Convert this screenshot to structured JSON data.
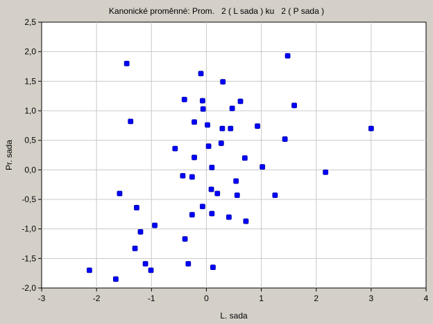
{
  "chart_data": {
    "type": "scatter",
    "title": "Kanonické proměnné: Prom.   2 ( L sada ) ku   2 ( P sada )",
    "xlabel": "L. sada",
    "ylabel": "Pr. sada",
    "xlim": [
      -3,
      4
    ],
    "ylim": [
      -2.0,
      2.5
    ],
    "xticks": [
      -3,
      -2,
      -1,
      0,
      1,
      2,
      3,
      4
    ],
    "xtick_labels": [
      "-3",
      "-2",
      "-1",
      "0",
      "1",
      "2",
      "3",
      "4"
    ],
    "yticks": [
      -2.0,
      -1.5,
      -1.0,
      -0.5,
      0.0,
      0.5,
      1.0,
      1.5,
      2.0,
      2.5
    ],
    "ytick_labels": [
      "-2,0",
      "-1,5",
      "-1,0",
      "-0,5",
      "0,0",
      "0,5",
      "1,0",
      "1,5",
      "2,0",
      "2,5"
    ],
    "grid": true,
    "marker_color": "#0000ff",
    "points": [
      {
        "x": -1.45,
        "y": 1.8
      },
      {
        "x": 1.48,
        "y": 1.93
      },
      {
        "x": -0.1,
        "y": 1.63
      },
      {
        "x": 0.3,
        "y": 1.49
      },
      {
        "x": -0.4,
        "y": 1.19
      },
      {
        "x": -0.07,
        "y": 1.17
      },
      {
        "x": 0.62,
        "y": 1.16
      },
      {
        "x": 1.6,
        "y": 1.09
      },
      {
        "x": -0.06,
        "y": 1.03
      },
      {
        "x": 0.47,
        "y": 1.04
      },
      {
        "x": -1.38,
        "y": 0.82
      },
      {
        "x": -0.22,
        "y": 0.81
      },
      {
        "x": 0.02,
        "y": 0.76
      },
      {
        "x": 0.29,
        "y": 0.7
      },
      {
        "x": 0.44,
        "y": 0.7
      },
      {
        "x": 0.93,
        "y": 0.74
      },
      {
        "x": 3.0,
        "y": 0.7
      },
      {
        "x": 1.43,
        "y": 0.52
      },
      {
        "x": 0.27,
        "y": 0.45
      },
      {
        "x": 0.04,
        "y": 0.4
      },
      {
        "x": -0.57,
        "y": 0.36
      },
      {
        "x": -0.22,
        "y": 0.21
      },
      {
        "x": 0.7,
        "y": 0.2
      },
      {
        "x": 0.1,
        "y": 0.04
      },
      {
        "x": 1.02,
        "y": 0.05
      },
      {
        "x": 2.17,
        "y": -0.04
      },
      {
        "x": -0.43,
        "y": -0.1
      },
      {
        "x": -0.26,
        "y": -0.12
      },
      {
        "x": 0.54,
        "y": -0.19
      },
      {
        "x": 0.09,
        "y": -0.33
      },
      {
        "x": -1.58,
        "y": -0.4
      },
      {
        "x": 0.2,
        "y": -0.4
      },
      {
        "x": 0.56,
        "y": -0.43
      },
      {
        "x": 1.25,
        "y": -0.43
      },
      {
        "x": -1.27,
        "y": -0.64
      },
      {
        "x": -0.07,
        "y": -0.62
      },
      {
        "x": 0.1,
        "y": -0.74
      },
      {
        "x": -0.26,
        "y": -0.76
      },
      {
        "x": 0.41,
        "y": -0.8
      },
      {
        "x": 0.72,
        "y": -0.87
      },
      {
        "x": -0.94,
        "y": -0.94
      },
      {
        "x": -1.2,
        "y": -1.05
      },
      {
        "x": -0.39,
        "y": -1.17
      },
      {
        "x": -1.3,
        "y": -1.33
      },
      {
        "x": -1.11,
        "y": -1.59
      },
      {
        "x": -0.33,
        "y": -1.59
      },
      {
        "x": 0.12,
        "y": -1.65
      },
      {
        "x": -2.13,
        "y": -1.7
      },
      {
        "x": -1.01,
        "y": -1.7
      },
      {
        "x": -1.65,
        "y": -1.85
      }
    ]
  }
}
